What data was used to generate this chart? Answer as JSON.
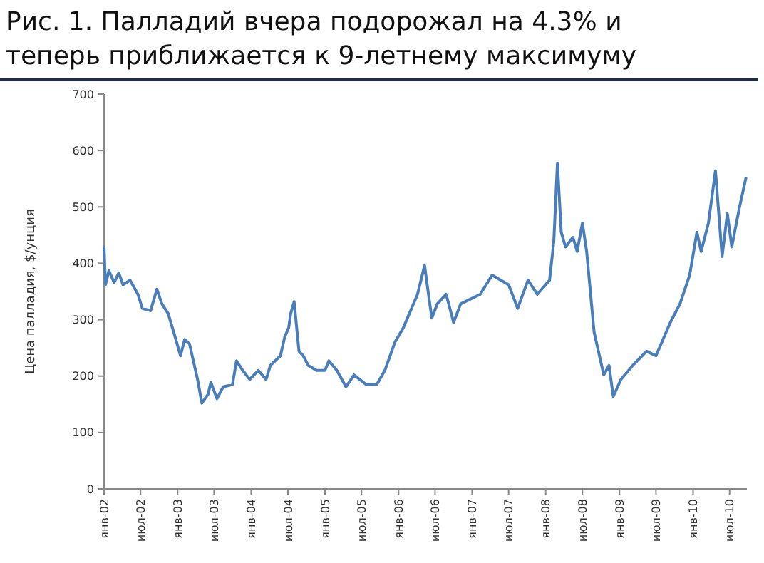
{
  "chart_data": {
    "type": "line",
    "title": "Рис. 1. Палладий вчера подорожал на 4.3% и теперь приближается к 9-летнему максимуму",
    "ylabel": "Цена палладия, $/унция",
    "x": [
      "2002-01-01",
      "2002-01-08",
      "2002-01-25",
      "2002-02-20",
      "2002-03-15",
      "2002-04-05",
      "2002-05-10",
      "2002-06-18",
      "2002-07-10",
      "2002-08-20",
      "2002-09-20",
      "2002-10-15",
      "2002-11-15",
      "2002-12-20",
      "2003-01-15",
      "2003-02-05",
      "2003-03-01",
      "2003-03-20",
      "2003-04-10",
      "2003-05-01",
      "2003-06-01",
      "2003-06-15",
      "2003-07-15",
      "2003-08-15",
      "2003-09-30",
      "2003-10-20",
      "2003-11-20",
      "2003-12-25",
      "2004-02-05",
      "2004-03-15",
      "2004-04-05",
      "2004-05-25",
      "2004-06-15",
      "2004-07-05",
      "2004-07-15",
      "2004-08-01",
      "2004-08-25",
      "2004-09-15",
      "2004-10-10",
      "2004-11-20",
      "2005-01-01",
      "2005-01-20",
      "2005-03-01",
      "2005-04-15",
      "2005-05-25",
      "2005-07-25",
      "2005-09-15",
      "2005-10-25",
      "2005-12-15",
      "2006-01-25",
      "2006-04-05",
      "2006-05-10",
      "2006-06-05",
      "2006-06-15",
      "2006-07-12",
      "2006-08-25",
      "2006-10-01",
      "2006-11-05",
      "2007-02-10",
      "2007-04-10",
      "2007-07-01",
      "2007-08-15",
      "2007-10-05",
      "2007-11-20",
      "2008-01-20",
      "2008-02-10",
      "2008-02-28",
      "2008-03-18",
      "2008-04-08",
      "2008-05-15",
      "2008-06-05",
      "2008-07-01",
      "2008-07-22",
      "2008-08-28",
      "2008-10-15",
      "2008-11-10",
      "2008-12-01",
      "2009-01-08",
      "2009-03-08",
      "2009-05-15",
      "2009-07-01",
      "2009-09-10",
      "2009-10-28",
      "2009-12-15",
      "2010-01-20",
      "2010-02-10",
      "2010-03-18",
      "2010-04-22",
      "2010-05-25",
      "2010-06-20",
      "2010-07-12",
      "2010-08-18",
      "2010-09-20"
    ],
    "series": [
      {
        "color": "#4a7ebb",
        "values": [
          429,
          362,
          387,
          366,
          383,
          362,
          370,
          345,
          320,
          316,
          354,
          328,
          311,
          269,
          236,
          265,
          257,
          227,
          194,
          152,
          168,
          189,
          160,
          181,
          185,
          227,
          210,
          194,
          210,
          194,
          219,
          236,
          269,
          286,
          311,
          332,
          244,
          236,
          219,
          210,
          210,
          227,
          210,
          181,
          202,
          185,
          185,
          210,
          261,
          286,
          345,
          396,
          328,
          303,
          328,
          345,
          295,
          328,
          345,
          379,
          362,
          320,
          370,
          345,
          370,
          438,
          577,
          455,
          429,
          446,
          421,
          471,
          421,
          278,
          202,
          219,
          164,
          194,
          219,
          244,
          236,
          295,
          328,
          379,
          455,
          421,
          471,
          564,
          412,
          488,
          429,
          497,
          551
        ]
      }
    ],
    "xlim": [
      "2002-01-01",
      "2010-09-25"
    ],
    "xticks": [
      {
        "value": "2002-01",
        "label": "янв-02"
      },
      {
        "value": "2002-07",
        "label": "июл-02"
      },
      {
        "value": "2003-01",
        "label": "янв-03"
      },
      {
        "value": "2003-07",
        "label": "июл-03"
      },
      {
        "value": "2004-01",
        "label": "янв-04"
      },
      {
        "value": "2004-07",
        "label": "июл-04"
      },
      {
        "value": "2005-01",
        "label": "янв-05"
      },
      {
        "value": "2005-07",
        "label": "июл-05"
      },
      {
        "value": "2006-01",
        "label": "янв-06"
      },
      {
        "value": "2006-07",
        "label": "июл-06"
      },
      {
        "value": "2007-01",
        "label": "янв-07"
      },
      {
        "value": "2007-07",
        "label": "июл-07"
      },
      {
        "value": "2008-01",
        "label": "янв-08"
      },
      {
        "value": "2008-07",
        "label": "июл-08"
      },
      {
        "value": "2009-01",
        "label": "янв-09"
      },
      {
        "value": "2009-07",
        "label": "июл-09"
      },
      {
        "value": "2010-01",
        "label": "янв-10"
      },
      {
        "value": "2010-07",
        "label": "июл-10"
      }
    ],
    "ylim": [
      0,
      700
    ],
    "yticks": [
      0,
      100,
      200,
      300,
      400,
      500,
      600,
      700
    ],
    "line_style": "solid",
    "marker": "none",
    "grid": false
  }
}
